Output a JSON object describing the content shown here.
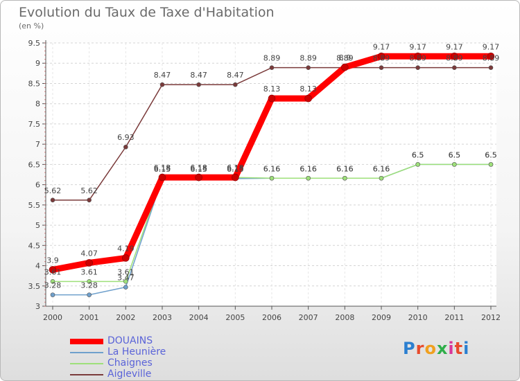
{
  "title": "Evolution du Taux de Taxe d'Habitation",
  "unit_label": "(en %)",
  "logo": {
    "text": "Proxiti",
    "colors": [
      "#2b7fd0",
      "#e84b2c",
      "#f0a020",
      "#2fae4a",
      "#d9369a",
      "#e84b2c",
      "#2b7fd0"
    ]
  },
  "chart_data": {
    "type": "line",
    "title": "Evolution du Taux de Taxe d'Habitation",
    "ylabel": "(en %)",
    "xlabel": "",
    "x": [
      "2000",
      "2001",
      "2002",
      "2003",
      "2004",
      "2005",
      "2006",
      "2007",
      "2008",
      "2009",
      "2010",
      "2011",
      "2012"
    ],
    "yticks": [
      "3",
      "3.5",
      "4",
      "4.5",
      "5",
      "5.5",
      "6",
      "6.5",
      "7",
      "7.5",
      "8",
      "8.5",
      "9",
      "9.5"
    ],
    "ylim": [
      3,
      9.5
    ],
    "grid": "horizontal dashed",
    "legend_position": "bottom-left",
    "series": [
      {
        "name": "DOUAINS",
        "color": "#ff0000",
        "values": [
          3.9,
          4.07,
          4.19,
          6.18,
          6.18,
          6.18,
          8.13,
          8.13,
          8.9,
          9.17,
          9.17,
          9.17,
          9.17
        ],
        "labels": [
          "3.9",
          "4.07",
          "4.19",
          "6.18",
          "6.18",
          "6.18",
          "8.13",
          "8.13",
          "8.9",
          "9.17",
          "9.17",
          "9.17",
          "9.17"
        ]
      },
      {
        "name": "La Heunière",
        "color": "#6fa0cc",
        "values": [
          3.28,
          3.28,
          3.47,
          6.15,
          6.15,
          6.15,
          6.16,
          6.16,
          6.16,
          6.16,
          6.5,
          6.5,
          6.5
        ],
        "labels": [
          "3.28",
          "3.28",
          "3.47",
          "6.15",
          "6.15",
          "6.15",
          "6.16",
          "6.16",
          "6.16",
          "6.16",
          "6.5",
          "6.5",
          "6.5"
        ],
        "_note": ""
      },
      {
        "name": "Chaignes",
        "color": "#9ee07a",
        "values": [
          3.61,
          3.61,
          3.61,
          6.18,
          6.18,
          6.18,
          6.16,
          6.16,
          6.16,
          6.16,
          6.5,
          6.5,
          6.5
        ],
        "labels": [
          "3.61",
          "3.61",
          "3.61",
          "6.18",
          "6.18",
          "6.18",
          "6.16",
          "6.16",
          "6.16",
          "6.16",
          "6.5",
          "6.5",
          "6.5"
        ]
      },
      {
        "name": "Aigleville",
        "color": "#7a3a3a",
        "values": [
          5.62,
          5.62,
          6.93,
          8.47,
          8.47,
          8.47,
          8.89,
          8.89,
          8.89,
          8.89,
          8.89,
          8.89,
          8.89
        ],
        "labels": [
          "5.62",
          "5.62",
          "6.93",
          "8.47",
          "8.47",
          "8.47",
          "8.89",
          "8.89",
          "8.89",
          "8.89",
          "8.89",
          "8.89",
          "8.89"
        ]
      }
    ]
  }
}
